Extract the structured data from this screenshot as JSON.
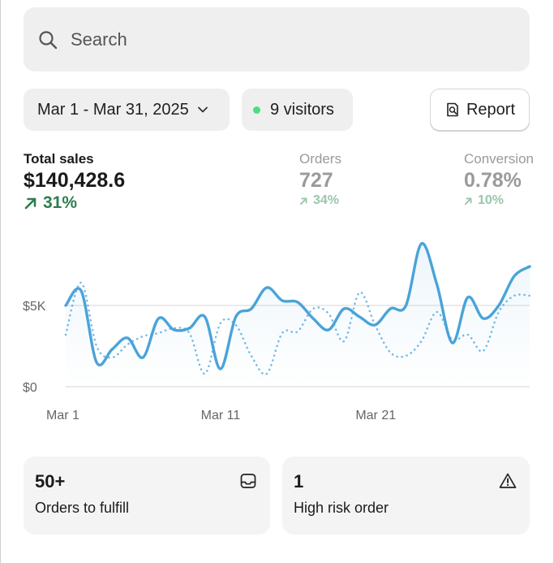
{
  "search": {
    "placeholder": "Search"
  },
  "filters": {
    "date_range": "Mar 1 - Mar 31, 2025",
    "visitors": "9 visitors",
    "report_label": "Report"
  },
  "metrics": [
    {
      "label": "Total sales",
      "value": "$140,428.6",
      "delta": "31%"
    },
    {
      "label": "Orders",
      "value": "727",
      "delta": "34%"
    },
    {
      "label": "Conversion",
      "value": "0.78%",
      "delta": "10%"
    }
  ],
  "colors": {
    "accent_line": "#4aa3d9",
    "positive": "#2f7d4f",
    "positive_muted": "#9cc6ac",
    "visitor_dot": "#4ade80"
  },
  "chart_data": {
    "type": "line",
    "x_ticks": [
      "Mar 1",
      "Mar 11",
      "Mar 21"
    ],
    "y_ticks": [
      "$0",
      "$5K"
    ],
    "ylim": [
      0,
      10000
    ],
    "x": [
      1,
      2,
      3,
      4,
      5,
      6,
      7,
      8,
      9,
      10,
      11,
      12,
      13,
      14,
      15,
      16,
      17,
      18,
      19,
      20,
      21,
      22,
      23,
      24,
      25,
      26,
      27,
      28,
      29,
      30,
      31
    ],
    "series": [
      {
        "style": "solid",
        "values": [
          5000,
          5900,
          1500,
          2300,
          3000,
          1800,
          4200,
          3500,
          3600,
          4300,
          1100,
          4300,
          4800,
          6100,
          5300,
          5200,
          4200,
          3500,
          4800,
          4300,
          3800,
          4800,
          5000,
          8800,
          6300,
          2700,
          5500,
          4200,
          5000,
          6800,
          7400
        ]
      },
      {
        "style": "dotted",
        "values": [
          3200,
          6400,
          2500,
          1800,
          2600,
          3100,
          3300,
          3600,
          3300,
          800,
          3900,
          3800,
          1900,
          800,
          3300,
          3400,
          4800,
          4500,
          2800,
          5800,
          3800,
          2100,
          1900,
          2800,
          4600,
          2900,
          3200,
          2200,
          4600,
          5600,
          5600
        ]
      }
    ]
  },
  "cards": [
    {
      "value": "50+",
      "label": "Orders to fulfill"
    },
    {
      "value": "1",
      "label": "High risk order"
    }
  ]
}
